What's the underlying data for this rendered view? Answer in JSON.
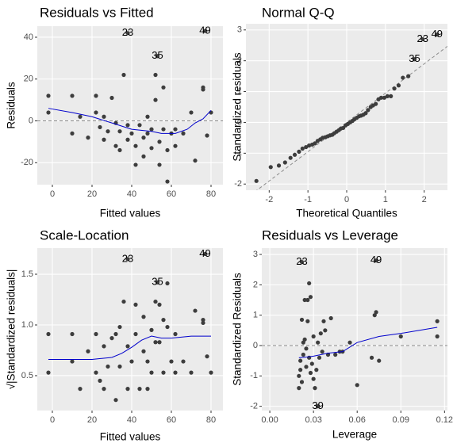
{
  "chart_data": [
    {
      "type": "scatter",
      "title": "Residuals vs Fitted",
      "xlabel": "Fitted values",
      "ylabel": "Residuals",
      "x": [
        38,
        77,
        53,
        -2,
        -2,
        10,
        10,
        14,
        18,
        22,
        22,
        24,
        26,
        26,
        28,
        30,
        32,
        32,
        34,
        34,
        36,
        38,
        38,
        40,
        42,
        42,
        44,
        46,
        46,
        48,
        48,
        50,
        50,
        52,
        52,
        54,
        54,
        56,
        56,
        58,
        58,
        60,
        62,
        62,
        66,
        70,
        72,
        76,
        76,
        78,
        80
      ],
      "y": [
        42,
        43,
        31,
        12,
        4,
        12,
        -6,
        2,
        -8,
        12,
        4,
        -3,
        2,
        -9,
        -5,
        11,
        -1,
        -12,
        -5,
        -14,
        22,
        -2,
        -9,
        -6,
        -21,
        -12,
        -2,
        -17,
        -8,
        2,
        -6,
        -13,
        -4,
        22,
        10,
        -10,
        -21,
        16,
        -4,
        -29,
        -14,
        -6,
        -4,
        -12,
        -6,
        4,
        -19,
        16,
        15,
        -7,
        4
      ],
      "point_labels": [
        "23",
        "49",
        "35",
        null,
        null,
        null,
        null,
        null,
        null,
        null,
        null,
        null,
        null,
        null,
        null,
        null,
        null,
        null,
        null,
        null,
        null,
        null,
        null,
        null,
        null,
        null,
        null,
        null,
        null,
        null,
        null,
        null,
        null,
        null,
        null,
        null,
        null,
        null,
        null,
        null,
        null,
        null,
        null,
        null,
        null,
        null,
        null,
        null,
        null,
        null,
        null
      ],
      "color": "#3d3d3d",
      "smooth": {
        "x": [
          -2,
          10,
          20,
          30,
          40,
          50,
          55,
          62,
          68,
          72,
          76,
          80
        ],
        "y": [
          6,
          4,
          2,
          -1,
          -4,
          -5,
          -6,
          -6,
          -4,
          -1,
          1,
          5
        ],
        "color": "#0000cc"
      },
      "hline": 0,
      "xlim": [
        -7.6,
        86
      ],
      "ylim": [
        -30.5,
        45.3
      ],
      "xticks": [
        0,
        20,
        40,
        60,
        80
      ],
      "yticks": [
        -20,
        0,
        20,
        40
      ],
      "grid": true
    },
    {
      "type": "scatter",
      "title": "Normal Q-Q",
      "xlabel": "Theoretical Quantiles",
      "ylabel": "Standardized residuals",
      "x": [
        -2.33,
        -1.96,
        -1.75,
        -1.59,
        -1.45,
        -1.34,
        -1.23,
        -1.14,
        -1.05,
        -0.97,
        -0.89,
        -0.82,
        -0.75,
        -0.68,
        -0.62,
        -0.55,
        -0.49,
        -0.43,
        -0.37,
        -0.32,
        -0.26,
        -0.2,
        -0.15,
        -0.09,
        -0.03,
        0.03,
        0.09,
        0.15,
        0.2,
        0.26,
        0.32,
        0.37,
        0.43,
        0.49,
        0.55,
        0.62,
        0.68,
        0.75,
        0.82,
        0.89,
        0.97,
        1.05,
        1.14,
        1.23,
        1.34,
        1.45,
        1.59,
        1.75,
        1.96,
        2.33
      ],
      "y": [
        -1.9,
        -1.45,
        -1.4,
        -1.3,
        -1.15,
        -1.05,
        -0.95,
        -0.85,
        -0.8,
        -0.75,
        -0.72,
        -0.68,
        -0.6,
        -0.55,
        -0.5,
        -0.48,
        -0.45,
        -0.42,
        -0.4,
        -0.35,
        -0.3,
        -0.25,
        -0.2,
        -0.18,
        -0.1,
        -0.05,
        0,
        0.05,
        0.1,
        0.15,
        0.2,
        0.22,
        0.25,
        0.3,
        0.4,
        0.5,
        0.55,
        0.6,
        0.75,
        0.8,
        0.8,
        0.85,
        0.85,
        1.1,
        1.2,
        1.45,
        1.5,
        2.05,
        2.7,
        2.85
      ],
      "point_labels": [
        null,
        null,
        null,
        null,
        null,
        null,
        null,
        null,
        null,
        null,
        null,
        null,
        null,
        null,
        null,
        null,
        null,
        null,
        null,
        null,
        null,
        null,
        null,
        null,
        null,
        null,
        null,
        null,
        null,
        null,
        null,
        null,
        null,
        null,
        null,
        null,
        null,
        null,
        null,
        null,
        null,
        null,
        null,
        null,
        null,
        null,
        null,
        "35",
        "23",
        "49"
      ],
      "color": "#3d3d3d",
      "reference_line": {
        "intercept": 0,
        "slope": 0.95
      },
      "xlim": [
        -2.6,
        2.6
      ],
      "ylim": [
        -2.2,
        3.2
      ],
      "xticks": [
        -2,
        -1,
        0,
        1,
        2
      ],
      "yticks": [
        -2,
        -1,
        0,
        1,
        2,
        3
      ],
      "grid": true
    },
    {
      "type": "scatter",
      "title": "Scale-Location",
      "xlabel": "Fitted values",
      "ylabel": "√|Standardized residuals|",
      "x": [
        38,
        77,
        53,
        -2,
        -2,
        10,
        10,
        14,
        18,
        22,
        22,
        24,
        26,
        26,
        28,
        30,
        32,
        32,
        34,
        34,
        36,
        38,
        38,
        40,
        42,
        42,
        44,
        46,
        46,
        48,
        48,
        50,
        50,
        52,
        52,
        54,
        54,
        56,
        56,
        58,
        58,
        60,
        62,
        62,
        66,
        70,
        72,
        76,
        76,
        78,
        80
      ],
      "y": [
        1.65,
        1.7,
        1.42,
        0.91,
        0.53,
        0.91,
        0.64,
        0.37,
        0.74,
        0.91,
        0.53,
        0.45,
        0.37,
        0.79,
        0.59,
        0.87,
        0.26,
        0.91,
        0.59,
        0.98,
        1.23,
        0.37,
        0.79,
        0.64,
        1.2,
        0.91,
        0.37,
        1.08,
        0.74,
        0.37,
        0.64,
        0.95,
        0.53,
        1.23,
        0.83,
        0.83,
        1.2,
        1.05,
        0.53,
        1.41,
        0.98,
        0.64,
        0.53,
        0.91,
        0.64,
        0.53,
        1.14,
        1.05,
        1.02,
        0.69,
        0.53
      ],
      "point_labels": [
        "23",
        "49",
        "35",
        null,
        null,
        null,
        null,
        null,
        null,
        null,
        null,
        null,
        null,
        null,
        null,
        null,
        null,
        null,
        null,
        null,
        null,
        null,
        null,
        null,
        null,
        null,
        null,
        null,
        null,
        null,
        null,
        null,
        null,
        null,
        null,
        null,
        null,
        null,
        null,
        null,
        null,
        null,
        null,
        null,
        null,
        null,
        null,
        null,
        null,
        null,
        null
      ],
      "color": "#3d3d3d",
      "smooth": {
        "x": [
          -2,
          10,
          20,
          30,
          35,
          40,
          45,
          50,
          55,
          60,
          65,
          70,
          80
        ],
        "y": [
          0.66,
          0.66,
          0.66,
          0.68,
          0.72,
          0.78,
          0.85,
          0.89,
          0.87,
          0.87,
          0.88,
          0.89,
          0.89
        ],
        "color": "#0000cc"
      },
      "xlim": [
        -7.6,
        86
      ],
      "ylim": [
        0.156,
        1.758
      ],
      "xticks": [
        0,
        20,
        40,
        60,
        80
      ],
      "yticks": [
        0.5,
        {
          "value": 1,
          "label": "1.0"
        },
        1.5
      ],
      "grid": true
    },
    {
      "type": "scatter",
      "title": "Residuals vs Leverage",
      "xlabel": "Leverage",
      "ylabel": "Standardized Residuals",
      "x": [
        0.022,
        0.073,
        0.033,
        0.02,
        0.02,
        0.021,
        0.021,
        0.022,
        0.022,
        0.023,
        0.023,
        0.024,
        0.024,
        0.025,
        0.025,
        0.026,
        0.026,
        0.027,
        0.027,
        0.028,
        0.028,
        0.029,
        0.03,
        0.03,
        0.031,
        0.032,
        0.033,
        0.034,
        0.035,
        0.036,
        0.037,
        0.038,
        0.04,
        0.042,
        0.045,
        0.048,
        0.05,
        0.055,
        0.06,
        0.07,
        0.072,
        0.073,
        0.075,
        0.09,
        0.115,
        0.115
      ],
      "y": [
        2.75,
        2.8,
        -2.0,
        -1.4,
        -1.0,
        -0.8,
        -0.5,
        0.85,
        -1.2,
        0.1,
        -0.3,
        1.5,
        0.2,
        -0.7,
        -0.1,
        1.5,
        0.8,
        2.05,
        -0.4,
        1.6,
        -0.9,
        -0.6,
        0.3,
        -1.1,
        -1.4,
        -0.8,
        0.1,
        -0.4,
        0.4,
        -0.2,
        0.8,
        0.5,
        -0.3,
        0.9,
        -0.3,
        -0.2,
        -0.2,
        0.1,
        -1.3,
        -0.4,
        1.0,
        1.1,
        -0.5,
        0.3,
        0.8,
        0.3
      ],
      "point_labels": [
        "23",
        "49",
        "39",
        null,
        null,
        null,
        null,
        null,
        null,
        null,
        null,
        null,
        null,
        null,
        null,
        null,
        null,
        null,
        null,
        null,
        null,
        null,
        null,
        null,
        null,
        null,
        null,
        null,
        null,
        null,
        null,
        null,
        null,
        null,
        null,
        null,
        null,
        null,
        null,
        null,
        null,
        null,
        null,
        null,
        null,
        null
      ],
      "color": "#3d3d3d",
      "smooth": {
        "x": [
          0.02,
          0.025,
          0.03,
          0.04,
          0.05,
          0.06,
          0.075,
          0.09,
          0.115
        ],
        "y": [
          -0.4,
          -0.38,
          -0.35,
          -0.25,
          -0.2,
          0.1,
          0.3,
          0.4,
          0.6
        ],
        "color": "#0000cc"
      },
      "hline": 0,
      "xlim": [
        -0.0055,
        0.122
      ],
      "ylim": [
        -2.14,
        3.21
      ],
      "xticks": [
        {
          "value": 0,
          "label": "0.00"
        },
        {
          "value": 0.03,
          "label": "0.03"
        },
        {
          "value": 0.06,
          "label": "0.06"
        },
        {
          "value": 0.09,
          "label": "0.09"
        },
        {
          "value": 0.12,
          "label": "0.12"
        }
      ],
      "yticks": [
        -2,
        -1,
        0,
        1,
        2,
        3
      ],
      "grid": true
    }
  ]
}
